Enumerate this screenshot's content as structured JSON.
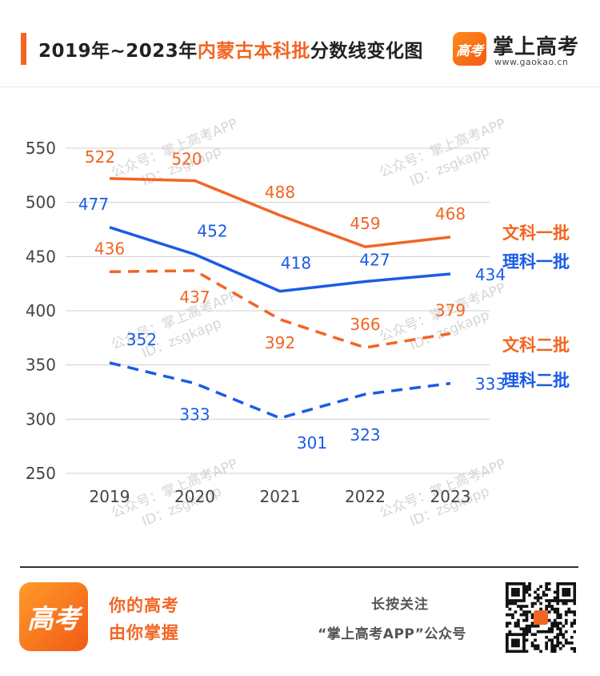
{
  "header": {
    "title_prefix": "2019年~2023年",
    "title_highlight": "内蒙古本科批",
    "title_suffix": "分数线变化图",
    "brand_logo_text": "高考",
    "brand_name": "掌上高考",
    "brand_url": "www.gaokao.cn"
  },
  "colors": {
    "orange": "#f26522",
    "blue": "#1a5ce6",
    "grid": "#cfcfcf",
    "watermark": "#c8c8c8"
  },
  "watermark": {
    "line1": "公众号：掌上高考APP",
    "line2": "ID：zsgkapp"
  },
  "chart_data": {
    "type": "line",
    "title": "2019年~2023年内蒙古本科批分数线变化图",
    "x": [
      "2019",
      "2020",
      "2021",
      "2022",
      "2023"
    ],
    "ylim": [
      250,
      550
    ],
    "yticks": [
      550,
      500,
      450,
      400,
      350,
      300,
      250
    ],
    "grid": true,
    "legend_placement": "right",
    "series": [
      {
        "name": "文科一批",
        "values": [
          522,
          520,
          488,
          459,
          468
        ],
        "color": "#f26522",
        "dash": false
      },
      {
        "name": "理科一批",
        "values": [
          477,
          452,
          418,
          427,
          434
        ],
        "color": "#1a5ce6",
        "dash": false
      },
      {
        "name": "文科二批",
        "values": [
          436,
          437,
          392,
          366,
          379
        ],
        "color": "#f26522",
        "dash": true
      },
      {
        "name": "理科二批",
        "values": [
          352,
          333,
          301,
          323,
          333
        ],
        "color": "#1a5ce6",
        "dash": true
      }
    ]
  },
  "footer": {
    "logo_text": "高考",
    "slogan_line1": "你的高考",
    "slogan_line2": "由你掌握",
    "follow_line1": "长按关注",
    "follow_line2": "“掌上高考APP”公众号"
  }
}
